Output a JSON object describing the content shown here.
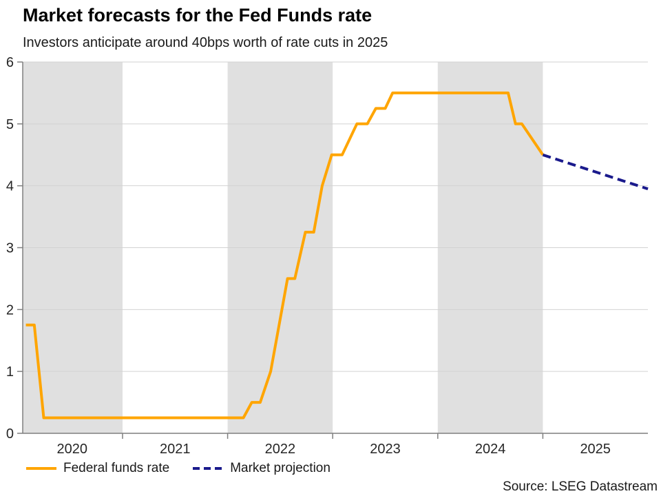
{
  "header": {
    "title": "Market forecasts for the Fed Funds rate",
    "subtitle": "Investors anticipate around 40bps worth of rate cuts in 2025"
  },
  "source_note": "Source: LSEG Datastream",
  "chart_data": {
    "type": "line",
    "title": "Market forecasts for the Fed Funds rate",
    "subtitle": "Investors anticipate around 40bps worth of rate cuts in 2025",
    "xlabel": "",
    "ylabel": "",
    "x_range": [
      2020.05,
      2026.0
    ],
    "y_range": [
      0,
      6
    ],
    "y_ticks": [
      0,
      1,
      2,
      3,
      4,
      5,
      6
    ],
    "y_gridlines": [
      1,
      2,
      3,
      4,
      5,
      6
    ],
    "x_ticks": [
      2021,
      2022,
      2023,
      2024,
      2025
    ],
    "x_labels": [
      {
        "text": "2020",
        "x": 2020.52
      },
      {
        "text": "2021",
        "x": 2021.5
      },
      {
        "text": "2022",
        "x": 2022.5
      },
      {
        "text": "2023",
        "x": 2023.5
      },
      {
        "text": "2024",
        "x": 2024.5
      },
      {
        "text": "2025",
        "x": 2025.5
      }
    ],
    "shaded_bands": [
      [
        2020.05,
        2021
      ],
      [
        2022,
        2023
      ],
      [
        2024,
        2025
      ]
    ],
    "grid": "horizontal",
    "legend_position": "bottom-left",
    "colors": {
      "band": "#E0E0E0",
      "grid": "#D2D2D2",
      "axis": "#7F7F7F",
      "tick_label": "#262626"
    },
    "series": [
      {
        "name": "Federal funds rate",
        "color": "#FFA500",
        "dashed": false,
        "points": [
          [
            2020.08,
            1.75
          ],
          [
            2020.16,
            1.75
          ],
          [
            2020.25,
            0.25
          ],
          [
            2022.15,
            0.25
          ],
          [
            2022.23,
            0.5
          ],
          [
            2022.31,
            0.5
          ],
          [
            2022.41,
            1.0
          ],
          [
            2022.57,
            2.5
          ],
          [
            2022.64,
            2.5
          ],
          [
            2022.74,
            3.25
          ],
          [
            2022.82,
            3.25
          ],
          [
            2022.9,
            4.0
          ],
          [
            2022.99,
            4.5
          ],
          [
            2023.09,
            4.5
          ],
          [
            2023.23,
            5.0
          ],
          [
            2023.33,
            5.0
          ],
          [
            2023.41,
            5.25
          ],
          [
            2023.5,
            5.25
          ],
          [
            2023.57,
            5.5
          ],
          [
            2024.67,
            5.5
          ],
          [
            2024.74,
            5.0
          ],
          [
            2024.8,
            5.0
          ],
          [
            2025.0,
            4.5
          ]
        ]
      },
      {
        "name": "Market projection",
        "color": "#1A1A8C",
        "dashed": true,
        "points": [
          [
            2025.0,
            4.5
          ],
          [
            2026.0,
            3.95
          ]
        ]
      }
    ]
  }
}
